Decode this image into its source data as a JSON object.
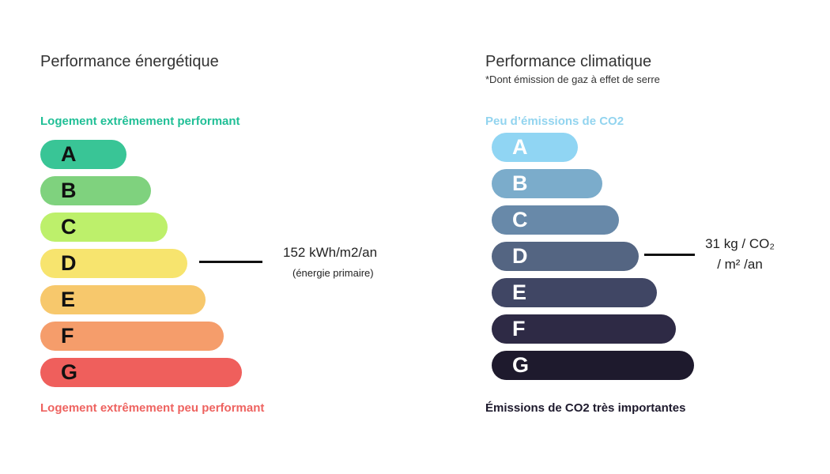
{
  "chart_data": [
    {
      "type": "bar",
      "title": "Performance énergétique",
      "top_label": "Logement extrêmement performant",
      "bottom_label": "Logement extrêmement peu performant",
      "categories": [
        "A",
        "B",
        "C",
        "D",
        "E",
        "F",
        "G"
      ],
      "colors": [
        "#39c596",
        "#7fd27e",
        "#bdf06b",
        "#f7e46e",
        "#f7c86c",
        "#f59d6b",
        "#ef5f5c"
      ],
      "highlighted": "D",
      "value": "152 kWh/m2/an",
      "value_note": "(énergie primaire)",
      "top_label_color": "#20bf96",
      "bottom_label_color": "#ee6360"
    },
    {
      "type": "bar",
      "title": "Performance climatique",
      "subtitle": "*Dont émission de gaz à effet de serre",
      "top_label": "Peu d’émissions de CO2",
      "bottom_label": "Émissions de CO2 très importantes",
      "categories": [
        "A",
        "B",
        "C",
        "D",
        "E",
        "F",
        "G"
      ],
      "colors": [
        "#90d5f3",
        "#7baccb",
        "#6889a9",
        "#546582",
        "#404664",
        "#2e2a45",
        "#1e1a2d"
      ],
      "highlighted": "D",
      "value_line1": "31 kg / CO₂",
      "value_line2": "/ m² /an",
      "top_label_color": "#92d4ef",
      "bottom_label_color": "#1e1a2d"
    }
  ]
}
